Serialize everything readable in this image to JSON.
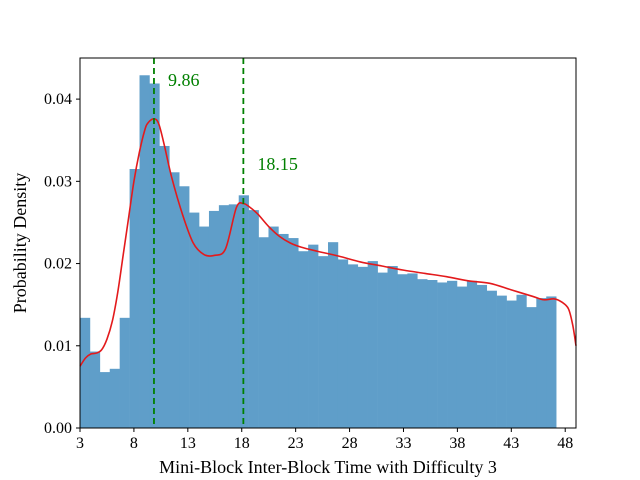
{
  "chart_data": {
    "type": "histogram",
    "title": "",
    "xlabel": "Mini-Block Inter-Block Time with Difficulty 3",
    "ylabel": "Probability Density",
    "xlim": [
      3,
      49
    ],
    "ylim": [
      0,
      0.045
    ],
    "x_ticks": [
      3,
      8,
      13,
      18,
      23,
      28,
      33,
      38,
      43,
      48
    ],
    "y_ticks": [
      0.0,
      0.01,
      0.02,
      0.03,
      0.04
    ],
    "y_tick_labels": [
      "0.00",
      "0.01",
      "0.02",
      "0.03",
      "0.04"
    ],
    "grid": false,
    "bar_color": "#5f9ec9",
    "curve_color": "#e31a1c",
    "annotation_color": "#008000",
    "bins": {
      "start": 3,
      "width": 0.92,
      "values": [
        0.0134,
        0.0093,
        0.0068,
        0.0072,
        0.0134,
        0.0315,
        0.0429,
        0.0419,
        0.0343,
        0.0311,
        0.0294,
        0.0262,
        0.0245,
        0.0264,
        0.0271,
        0.0272,
        0.0283,
        0.0265,
        0.0232,
        0.0245,
        0.0236,
        0.0231,
        0.0215,
        0.0223,
        0.0209,
        0.0226,
        0.0205,
        0.0199,
        0.0196,
        0.0203,
        0.0189,
        0.0197,
        0.0187,
        0.0188,
        0.0181,
        0.018,
        0.0177,
        0.0179,
        0.0172,
        0.0179,
        0.0174,
        0.0167,
        0.0161,
        0.0155,
        0.0162,
        0.0147,
        0.0158,
        0.016
      ]
    },
    "kde": {
      "x": [
        3.0,
        3.5,
        4.0,
        4.5,
        5.0,
        5.5,
        6.0,
        6.5,
        7.0,
        7.5,
        8.0,
        8.5,
        9.0,
        9.3,
        9.86,
        10.3,
        10.8,
        11.5,
        12.5,
        13.5,
        14.5,
        15.5,
        16.5,
        17.5,
        18.15,
        18.8,
        19.5,
        20.5,
        21.5,
        22.5,
        23.5,
        25.0,
        27.0,
        29.0,
        31.0,
        33.0,
        35.0,
        37.0,
        39.0,
        41.0,
        43.0,
        45.0,
        46.0,
        47.0,
        47.7,
        48.3,
        48.7,
        49.0
      ],
      "y": [
        0.0075,
        0.0085,
        0.009,
        0.0091,
        0.0095,
        0.0108,
        0.013,
        0.0165,
        0.021,
        0.0255,
        0.03,
        0.0335,
        0.0362,
        0.0371,
        0.0376,
        0.037,
        0.0345,
        0.0305,
        0.026,
        0.0225,
        0.0211,
        0.021,
        0.0218,
        0.0268,
        0.0273,
        0.0268,
        0.026,
        0.0245,
        0.0233,
        0.0225,
        0.022,
        0.0215,
        0.0209,
        0.0202,
        0.0197,
        0.0192,
        0.0188,
        0.0184,
        0.0179,
        0.0176,
        0.0168,
        0.016,
        0.0156,
        0.0157,
        0.0153,
        0.0145,
        0.0125,
        0.01
      ]
    },
    "annotations": [
      {
        "x": 9.86,
        "label": "9.86"
      },
      {
        "x": 18.15,
        "label": "18.15"
      }
    ]
  }
}
